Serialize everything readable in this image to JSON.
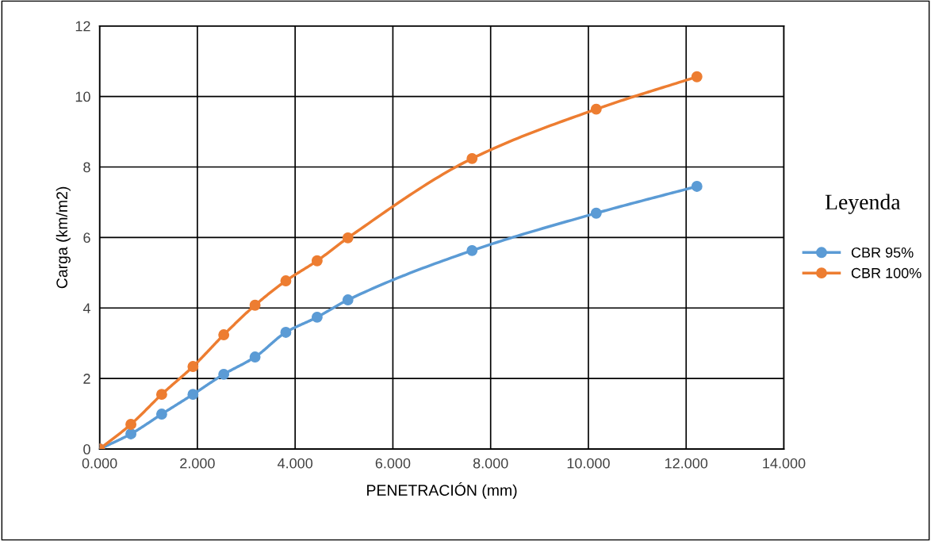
{
  "chart_data": {
    "type": "line",
    "xlabel": "PENETRACIÓN (mm)",
    "ylabel": "Carga (km/m2)",
    "legend_title": "Leyenda",
    "xlim": [
      0,
      14
    ],
    "xticks": [
      {
        "value": 0,
        "label": "0.000"
      },
      {
        "value": 2,
        "label": "2.000"
      },
      {
        "value": 4,
        "label": "4.000"
      },
      {
        "value": 6,
        "label": "6.000"
      },
      {
        "value": 8,
        "label": "8.000"
      },
      {
        "value": 10,
        "label": "10.000"
      },
      {
        "value": 12,
        "label": "12.000"
      },
      {
        "value": 14,
        "label": "14.000"
      }
    ],
    "ylim": [
      0,
      12
    ],
    "yticks": [
      0,
      2,
      4,
      6,
      8,
      10,
      12
    ],
    "grid": true,
    "legend": "right",
    "marker": "circle",
    "line_style": "solid",
    "x": [
      0,
      0.64,
      1.27,
      1.91,
      2.54,
      3.18,
      3.81,
      4.45,
      5.08,
      7.62,
      10.16,
      12.22
    ],
    "series": [
      {
        "name": "CBR 95%",
        "color": "#5b9bd5",
        "values": [
          0,
          0.43,
          0.99,
          1.55,
          2.12,
          2.61,
          3.31,
          3.74,
          4.23,
          5.63,
          6.69,
          7.45
        ]
      },
      {
        "name": "CBR 100%",
        "color": "#ed7d31",
        "values": [
          0,
          0.7,
          1.55,
          2.34,
          3.24,
          4.08,
          4.77,
          5.34,
          5.99,
          8.24,
          9.64,
          10.56
        ]
      }
    ]
  }
}
